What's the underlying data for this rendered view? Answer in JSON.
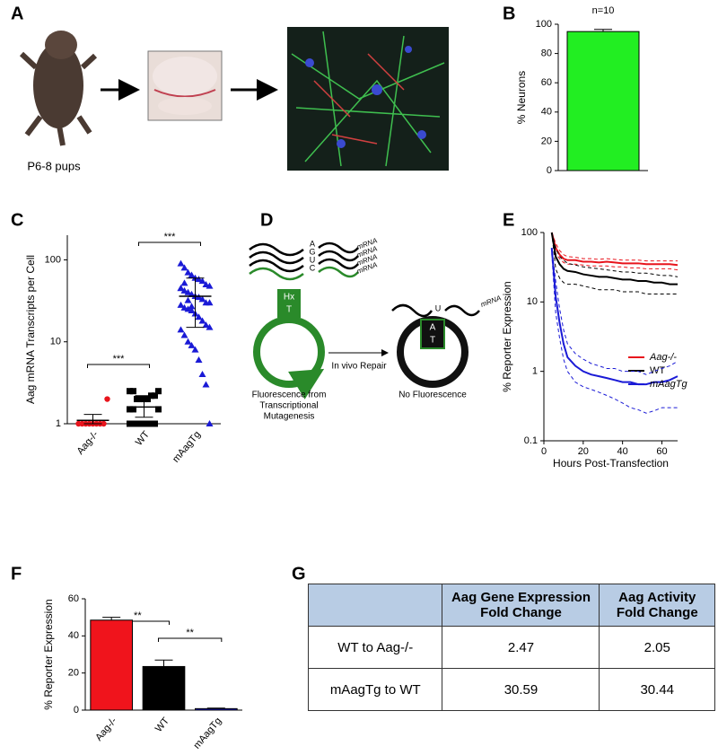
{
  "panel_labels": [
    "A",
    "B",
    "C",
    "D",
    "E",
    "F",
    "G"
  ],
  "panel_a": {
    "caption": "P6-8 pups"
  },
  "panel_d": {
    "bases": [
      "A",
      "G",
      "U",
      "C"
    ],
    "mrna": [
      "mRNA",
      "mRNA",
      "mRNA",
      "mRNA"
    ],
    "left_box": [
      "Hx",
      "T"
    ],
    "repair": "In vivo Repair",
    "right_base": "U",
    "right_mrna": "mRNA",
    "right_box": [
      "A",
      "T"
    ],
    "left_caption": [
      "Fluorescence from",
      "Transcriptional",
      "Mutagenesis"
    ],
    "right_caption": "No Fluorescence"
  },
  "chart_data": [
    {
      "type": "bar",
      "ylabel": "% Neurons",
      "annotation": "n=10",
      "categories": [
        null
      ],
      "values": [
        95
      ],
      "errors": [
        1.5
      ],
      "color": "#22ee22",
      "ylim": [
        0,
        100
      ],
      "yticks": [
        0,
        20,
        40,
        60,
        80,
        100
      ]
    },
    {
      "type": "strip",
      "ylabel": "Aag mRNA Transcripts per Cell",
      "log_y": true,
      "categories": [
        "Aag-/-",
        "WT",
        "mAagTg"
      ],
      "annotations": [
        "***",
        "***"
      ],
      "groups": [
        {
          "color": "#e8141c",
          "marker": "circle",
          "values": [
            1,
            1,
            1,
            1,
            1,
            1,
            1,
            1,
            2
          ],
          "mean": 1.1,
          "lower": 1,
          "upper": 1.3
        },
        {
          "color": "#000000",
          "marker": "square",
          "values": [
            1,
            1,
            1,
            1,
            1,
            1,
            1,
            1,
            1.5,
            1.5,
            1.5,
            2,
            2,
            2,
            2,
            2.2,
            2.2,
            2.5,
            2.5,
            2.5
          ],
          "mean": 1.6,
          "lower": 1.2,
          "upper": 2.2
        },
        {
          "color": "#1a1ad6",
          "marker": "triangle",
          "values": [
            90,
            80,
            70,
            65,
            60,
            58,
            55,
            50,
            48,
            45,
            42,
            40,
            38,
            36,
            35,
            33,
            30,
            30,
            28,
            26,
            25,
            24,
            22,
            20,
            18,
            16,
            15,
            14,
            12,
            10,
            9,
            8,
            6,
            4,
            3,
            1,
            45,
            52,
            32,
            27
          ],
          "mean": 36,
          "lower": 15,
          "upper": 60
        }
      ],
      "ylim": [
        1,
        200
      ],
      "yticks": [
        1,
        10,
        100
      ]
    },
    {
      "type": "line",
      "xlabel": "Hours Post-Transfection",
      "ylabel": "% Reporter Expression",
      "log_y": true,
      "x": [
        4,
        6,
        8,
        10,
        12,
        16,
        20,
        24,
        28,
        32,
        36,
        40,
        44,
        48,
        52,
        56,
        60,
        64,
        68
      ],
      "series": [
        {
          "name": "Aag-/-",
          "color": "#e8141c",
          "values": [
            100,
            60,
            48,
            42,
            40,
            40,
            38,
            38,
            37,
            38,
            37,
            36,
            36,
            36,
            35,
            35,
            35,
            35,
            34
          ],
          "upper": [
            100,
            70,
            55,
            48,
            45,
            44,
            42,
            42,
            41,
            42,
            41,
            40,
            40,
            40,
            39,
            39,
            39,
            39,
            39
          ],
          "lower": [
            100,
            50,
            42,
            37,
            35,
            35,
            34,
            33,
            33,
            33,
            32,
            32,
            31,
            31,
            30,
            30,
            30,
            30,
            29
          ]
        },
        {
          "name": "WT",
          "color": "#000000",
          "values": [
            100,
            45,
            35,
            30,
            28,
            27,
            25,
            24,
            23,
            23,
            22,
            21,
            21,
            20,
            20,
            19,
            19,
            18,
            18
          ],
          "upper": [
            100,
            60,
            45,
            40,
            36,
            34,
            32,
            31,
            30,
            29,
            28,
            27,
            27,
            26,
            26,
            25,
            24,
            24,
            23
          ],
          "lower": [
            100,
            30,
            22,
            19,
            18,
            18,
            17,
            16,
            15,
            15,
            15,
            14,
            14,
            14,
            13,
            13,
            13,
            13,
            13
          ]
        },
        {
          "name": "mAagTg",
          "color": "#1a1ad6",
          "values": [
            60,
            12,
            5,
            2.5,
            1.6,
            1.2,
            1.0,
            0.9,
            0.85,
            0.8,
            0.75,
            0.7,
            0.7,
            0.65,
            0.65,
            0.7,
            0.7,
            0.75,
            0.85
          ],
          "upper": [
            60,
            20,
            8,
            4,
            2.5,
            1.8,
            1.5,
            1.3,
            1.2,
            1.1,
            1.1,
            1.0,
            1.0,
            1.0,
            0.9,
            1.0,
            1.1,
            1.2,
            1.4
          ],
          "lower": [
            50,
            7,
            3,
            1.5,
            1.0,
            0.7,
            0.6,
            0.55,
            0.5,
            0.45,
            0.4,
            0.35,
            0.3,
            0.28,
            0.25,
            0.27,
            0.3,
            0.3,
            0.3
          ]
        }
      ],
      "xlim": [
        0,
        68
      ],
      "xticks": [
        0,
        20,
        40,
        60
      ],
      "ylim": [
        0.1,
        100
      ],
      "yticks": [
        0.1,
        1,
        10,
        100
      ]
    },
    {
      "type": "bar",
      "ylabel": "% Reporter Expression",
      "categories": [
        "Aag-/-",
        "WT",
        "mAagTg"
      ],
      "annotations": [
        "**",
        "**"
      ],
      "values": [
        48.5,
        23.5,
        0.8
      ],
      "errors": [
        1.5,
        3.5,
        0.3
      ],
      "colors": [
        "#f0141c",
        "#000000",
        "#1a1ad6"
      ],
      "ylim": [
        0,
        60
      ],
      "yticks": [
        0,
        20,
        40,
        60
      ]
    }
  ],
  "table": {
    "header": [
      "Aag Gene Expression Fold Change",
      "Aag Activity Fold Change"
    ],
    "rows": [
      [
        "WT to Aag-/-",
        2.47,
        2.05
      ],
      [
        "mAagTg to WT",
        30.59,
        30.44
      ]
    ]
  }
}
